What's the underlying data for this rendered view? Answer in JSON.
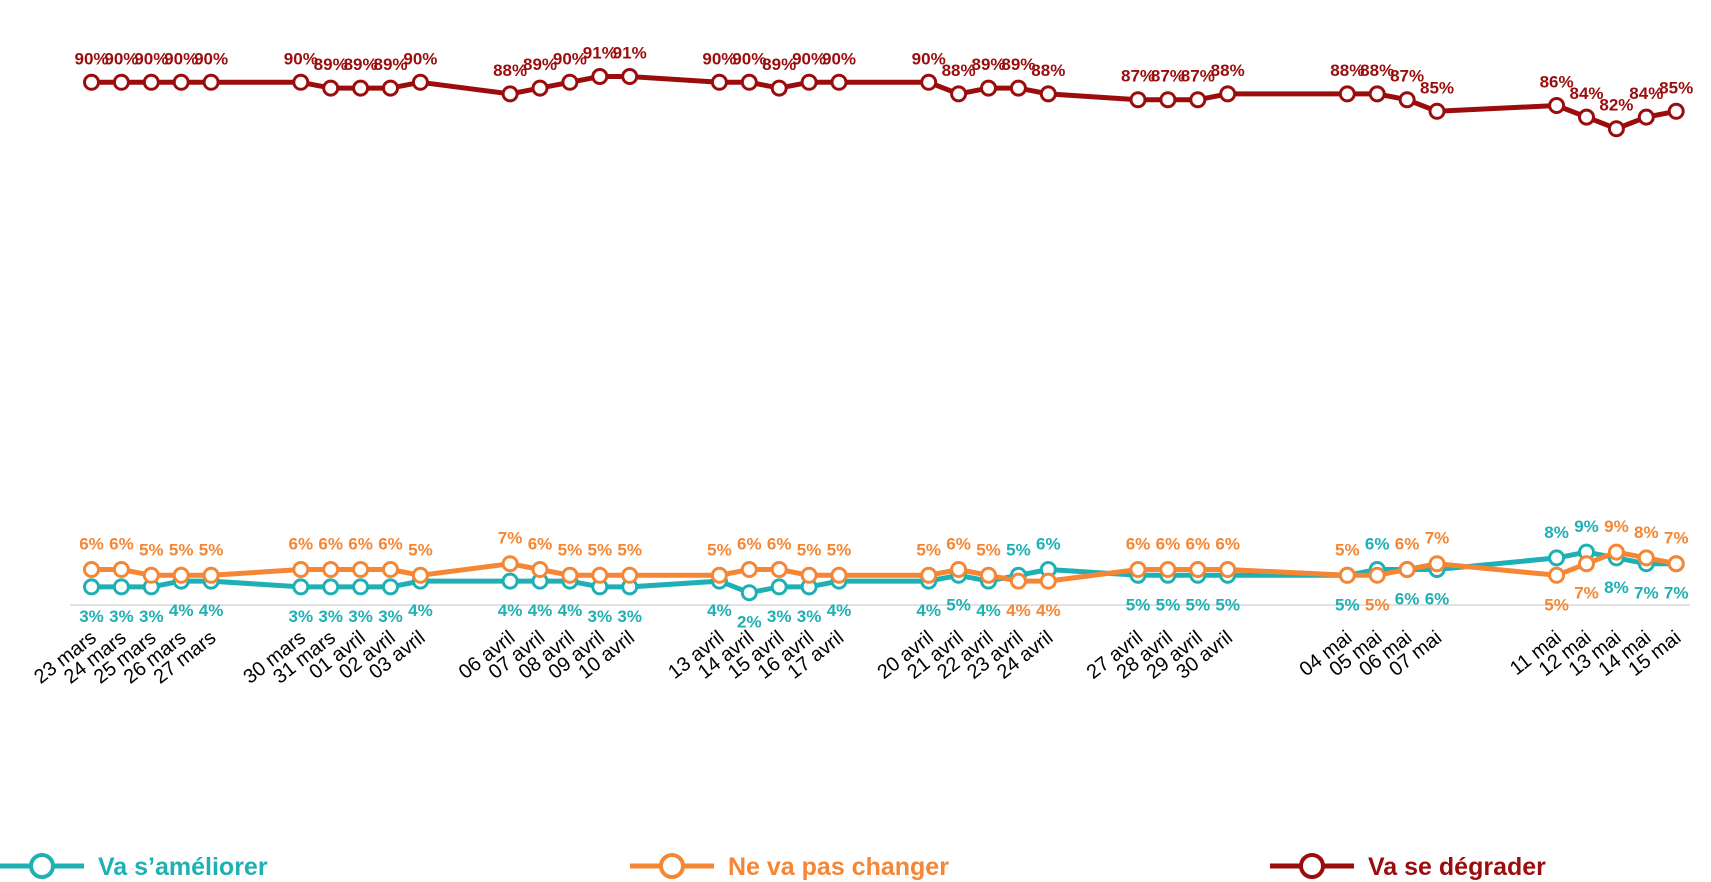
{
  "chart_data": {
    "type": "line",
    "title": "",
    "xlabel": "",
    "ylabel": "",
    "ylim": [
      0,
      100
    ],
    "grid": false,
    "legend_position": "bottom",
    "x": [
      "23 mars",
      "24 mars",
      "25 mars",
      "26 mars",
      "27 mars",
      "30 mars",
      "31 mars",
      "01 avril",
      "02 avril",
      "03 avril",
      "06 avril",
      "07 avril",
      "08 avril",
      "09 avril",
      "10 avril",
      "13 avril",
      "14 avril",
      "15 avril",
      "16 avril",
      "17 avril",
      "20 avril",
      "21 avril",
      "22 avril",
      "23 avril",
      "24 avril",
      "27 avril",
      "28 avril",
      "29 avril",
      "30 avril",
      "04 mai",
      "05 mai",
      "06 mai",
      "07 mai",
      "11 mai",
      "12 mai",
      "13 mai",
      "14 mai",
      "15 mai"
    ],
    "x_day_index": [
      0,
      1,
      2,
      3,
      4,
      7,
      8,
      9,
      10,
      11,
      14,
      15,
      16,
      17,
      18,
      21,
      22,
      23,
      24,
      25,
      28,
      29,
      30,
      31,
      32,
      35,
      36,
      37,
      38,
      42,
      43,
      44,
      45,
      49,
      50,
      51,
      52,
      53
    ],
    "series": [
      {
        "name": "Va s’améliorer",
        "color": "#1fb0b4",
        "values": [
          3,
          3,
          3,
          4,
          4,
          3,
          3,
          3,
          3,
          4,
          4,
          4,
          4,
          3,
          3,
          4,
          2,
          3,
          3,
          4,
          4,
          5,
          4,
          5,
          6,
          5,
          5,
          5,
          5,
          5,
          6,
          6,
          6,
          8,
          9,
          8,
          7,
          7
        ]
      },
      {
        "name": "Ne va pas changer",
        "color": "#f58634",
        "values": [
          6,
          6,
          5,
          5,
          5,
          6,
          6,
          6,
          6,
          5,
          7,
          6,
          5,
          5,
          5,
          5,
          6,
          6,
          5,
          5,
          5,
          6,
          5,
          4,
          4,
          6,
          6,
          6,
          6,
          5,
          5,
          6,
          7,
          5,
          7,
          9,
          8,
          7
        ]
      },
      {
        "name": "Va se dégrader",
        "color": "#9b0d0d",
        "values": [
          90,
          90,
          90,
          90,
          90,
          90,
          89,
          89,
          89,
          90,
          88,
          89,
          90,
          91,
          91,
          90,
          90,
          89,
          90,
          90,
          90,
          88,
          89,
          89,
          88,
          87,
          87,
          87,
          88,
          88,
          88,
          87,
          85,
          86,
          84,
          82,
          84,
          85
        ]
      }
    ]
  }
}
